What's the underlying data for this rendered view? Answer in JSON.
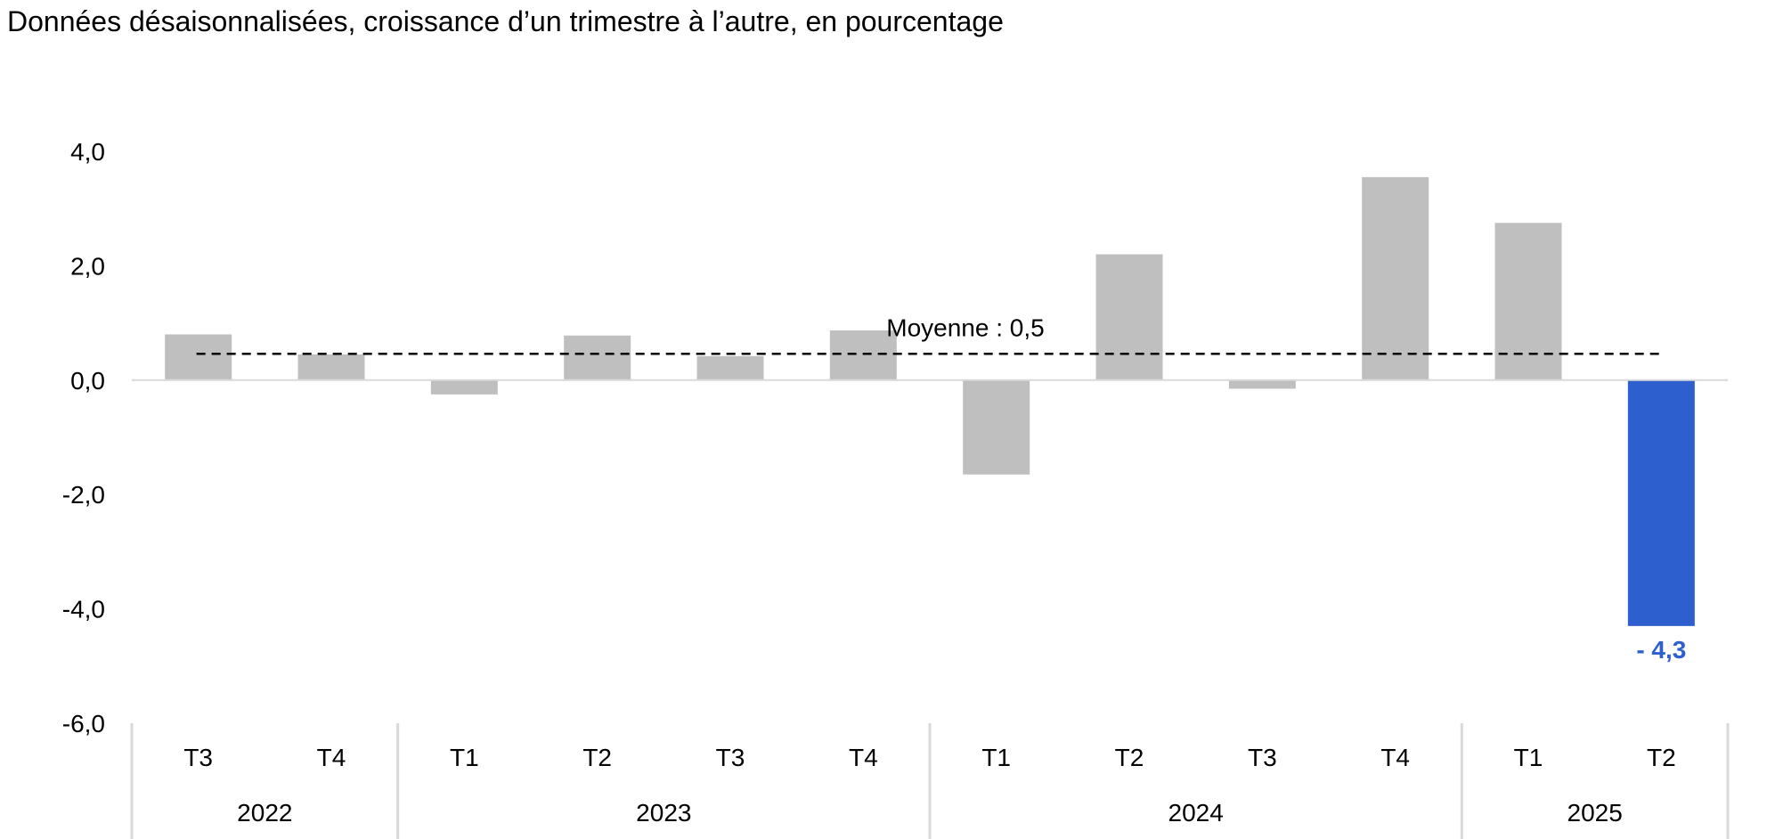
{
  "chart_data": {
    "type": "bar",
    "title": "Données désaisonnalisées, croissance d’un trimestre à l’autre, en pourcentage",
    "categories": [
      "T3",
      "T4",
      "T1",
      "T2",
      "T3",
      "T4",
      "T1",
      "T2",
      "T3",
      "T4",
      "T1",
      "T2"
    ],
    "groups": [
      {
        "label": "2022",
        "count": 2
      },
      {
        "label": "2023",
        "count": 4
      },
      {
        "label": "2024",
        "count": 4
      },
      {
        "label": "2025",
        "count": 2
      }
    ],
    "values": [
      0.8,
      0.45,
      -0.25,
      0.78,
      0.42,
      0.87,
      -1.65,
      2.2,
      -0.15,
      3.55,
      2.75,
      -4.3
    ],
    "highlight_index": 11,
    "highlight_label": "- 4,3",
    "ylim": [
      -6,
      4
    ],
    "yticks": [
      4,
      2,
      0,
      -2,
      -4,
      -6
    ],
    "ytick_labels": [
      "4,0",
      "2,0",
      "0,0",
      "-2,0",
      "-4,0",
      "-6,0"
    ],
    "average": {
      "value": 0.46,
      "label": "Moyenne : 0,5"
    },
    "colors": {
      "bar": "#bfbfbf",
      "highlight": "#2e5fce",
      "axis": "#d9d9d9",
      "average_line": "#000000",
      "text": "#000000"
    }
  }
}
